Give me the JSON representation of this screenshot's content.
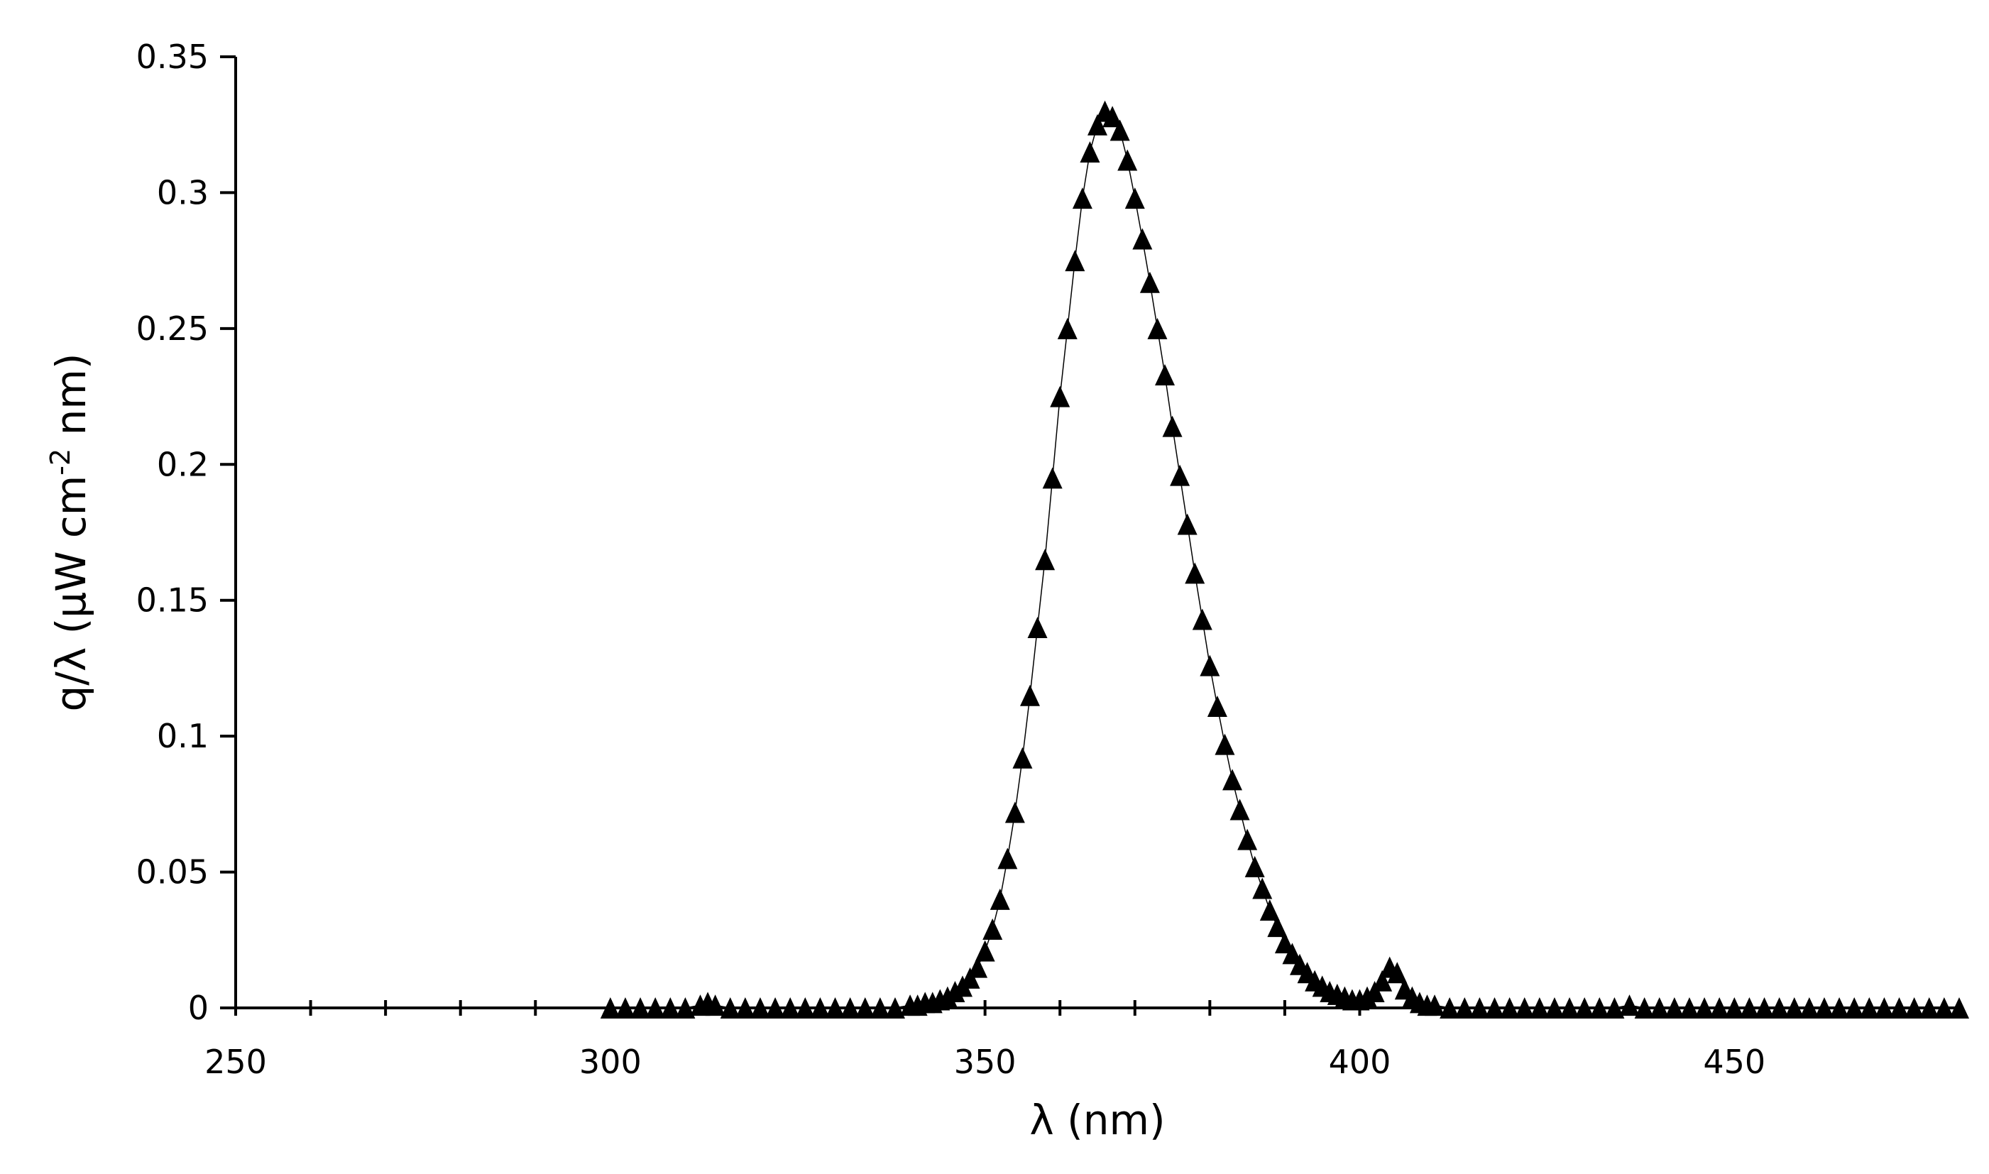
{
  "chart_data": {
    "type": "scatter",
    "title": "",
    "xlabel": "λ (nm)",
    "ylabel": {
      "main": "q/λ (μW cm",
      "sup": "-2",
      "tail": " nm)"
    },
    "xlim": [
      250,
      480
    ],
    "ylim": [
      0,
      0.35
    ],
    "xticks": [
      "250",
      "300",
      "350",
      "400",
      "450"
    ],
    "yticks": [
      "0",
      "0.05",
      "0.1",
      "0.15",
      "0.2",
      "0.25",
      "0.3",
      "0.35"
    ],
    "grid": false,
    "legend": "none",
    "marker": "triangle",
    "color": "#000000",
    "series": [
      {
        "x": [
          300,
          302,
          304,
          306,
          308,
          310,
          312,
          313,
          314,
          316,
          318,
          320,
          322,
          324,
          326,
          328,
          330,
          332,
          334,
          336,
          338,
          340,
          341,
          342,
          343,
          344,
          345,
          346,
          347,
          348,
          349,
          350,
          351,
          352,
          353,
          354,
          355,
          356,
          357,
          358,
          359,
          360,
          361,
          362,
          363,
          364,
          365,
          366,
          367,
          368,
          369,
          370,
          371,
          372,
          373,
          374,
          375,
          376,
          377,
          378,
          379,
          380,
          381,
          382,
          383,
          384,
          385,
          386,
          387,
          388,
          389,
          390,
          391,
          392,
          393,
          394,
          395,
          396,
          397,
          398,
          399,
          400,
          401,
          402,
          403,
          404,
          405,
          406,
          407,
          408,
          409,
          410,
          412,
          414,
          416,
          418,
          420,
          422,
          424,
          426,
          428,
          430,
          432,
          434,
          436,
          438,
          440,
          442,
          444,
          446,
          448,
          450,
          452,
          454,
          456,
          458,
          460,
          462,
          464,
          466,
          468,
          470,
          472,
          474,
          476,
          478,
          480
        ],
        "y": [
          0,
          0,
          0,
          0,
          0,
          0,
          0.001,
          0.002,
          0.001,
          0,
          0,
          0,
          0,
          0,
          0,
          0,
          0,
          0,
          0,
          0,
          0,
          0.001,
          0.001,
          0.002,
          0.002,
          0.003,
          0.004,
          0.006,
          0.008,
          0.011,
          0.015,
          0.021,
          0.029,
          0.04,
          0.055,
          0.072,
          0.092,
          0.115,
          0.14,
          0.165,
          0.195,
          0.225,
          0.25,
          0.275,
          0.298,
          0.315,
          0.325,
          0.33,
          0.328,
          0.323,
          0.312,
          0.298,
          0.283,
          0.267,
          0.25,
          0.233,
          0.214,
          0.196,
          0.178,
          0.16,
          0.143,
          0.126,
          0.111,
          0.097,
          0.084,
          0.073,
          0.062,
          0.052,
          0.044,
          0.036,
          0.03,
          0.024,
          0.02,
          0.016,
          0.013,
          0.01,
          0.008,
          0.006,
          0.005,
          0.004,
          0.003,
          0.003,
          0.004,
          0.006,
          0.01,
          0.015,
          0.013,
          0.007,
          0.004,
          0.002,
          0.001,
          0.001,
          0,
          0,
          0,
          0,
          0,
          0,
          0,
          0,
          0,
          0,
          0,
          0,
          0.001,
          0,
          0,
          0,
          0,
          0,
          0,
          0,
          0,
          0,
          0,
          0,
          0,
          0,
          0,
          0,
          0,
          0,
          0,
          0,
          0,
          0,
          0
        ]
      }
    ]
  }
}
